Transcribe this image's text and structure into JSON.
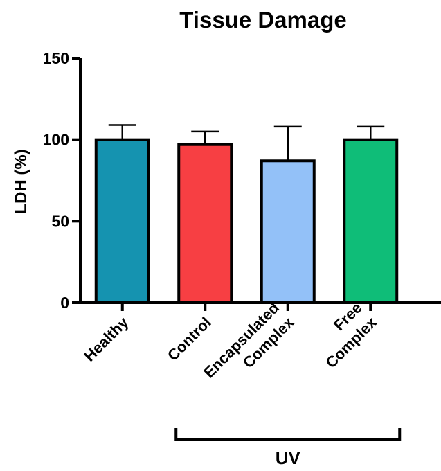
{
  "chart_data": {
    "type": "bar",
    "title": "Tissue Damage",
    "xlabel": "",
    "ylabel": "LDH (%)",
    "ylim": [
      0,
      150
    ],
    "yticks": [
      "0",
      "50",
      "100",
      "150"
    ],
    "categories": [
      [
        "Healthy"
      ],
      [
        "Control"
      ],
      [
        "Encapsulated",
        "Complex"
      ],
      [
        "Free",
        "Complex"
      ]
    ],
    "values": [
      100,
      97,
      87,
      100
    ],
    "errors": [
      9,
      8,
      21,
      8
    ],
    "colors": [
      "#1593b0",
      "#f73f43",
      "#93c1f8",
      "#0fbd78"
    ],
    "group": {
      "label": "UV",
      "spans": [
        1,
        3
      ]
    },
    "grid": false,
    "legend": "none"
  }
}
